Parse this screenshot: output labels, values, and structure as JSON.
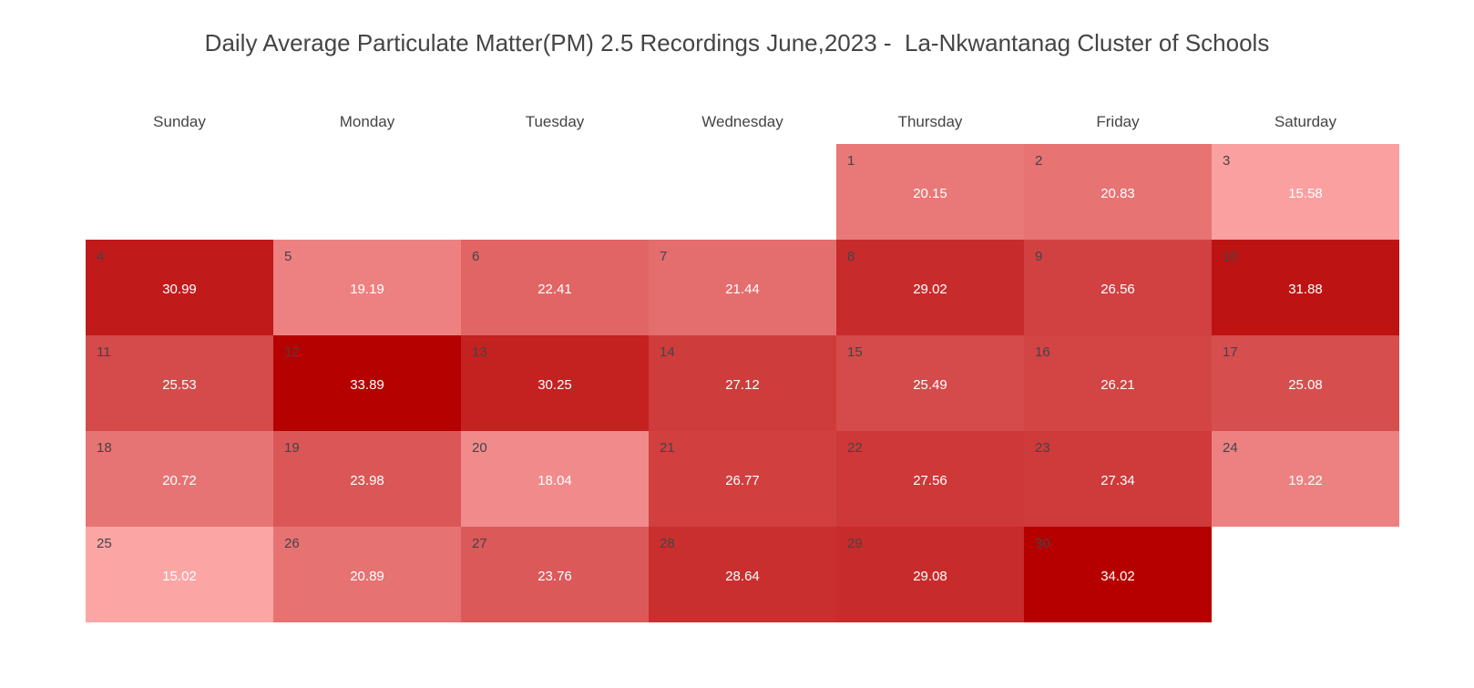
{
  "chart_data": {
    "type": "heatmap",
    "title": "Daily Average Particulate Matter(PM) 2.5 Recordings June,2023 -  La-Nkwantanag Cluster of Schools",
    "weekdays": [
      "Sunday",
      "Monday",
      "Tuesday",
      "Wednesday",
      "Thursday",
      "Friday",
      "Saturday"
    ],
    "first_weekday_index": 4,
    "days": [
      {
        "day": "1",
        "value": 20.15
      },
      {
        "day": "2",
        "value": 20.83
      },
      {
        "day": "3",
        "value": 15.58
      },
      {
        "day": "4",
        "value": 30.99
      },
      {
        "day": "5",
        "value": 19.19
      },
      {
        "day": "6",
        "value": 22.41
      },
      {
        "day": "7",
        "value": 21.44
      },
      {
        "day": "8",
        "value": 29.02
      },
      {
        "day": "9",
        "value": 26.56
      },
      {
        "day": "10",
        "value": 31.88
      },
      {
        "day": "11",
        "value": 25.53
      },
      {
        "day": "12",
        "value": 33.89
      },
      {
        "day": "13",
        "value": 30.25
      },
      {
        "day": "14",
        "value": 27.12
      },
      {
        "day": "15",
        "value": 25.49
      },
      {
        "day": "16",
        "value": 26.21
      },
      {
        "day": "17",
        "value": 25.08
      },
      {
        "day": "18",
        "value": 20.72
      },
      {
        "day": "19",
        "value": 23.98
      },
      {
        "day": "20",
        "value": 18.04
      },
      {
        "day": "21",
        "value": 26.77
      },
      {
        "day": "22",
        "value": 27.56
      },
      {
        "day": "23",
        "value": 27.34
      },
      {
        "day": "24",
        "value": 19.22
      },
      {
        "day": "25",
        "value": 15.02
      },
      {
        "day": "26",
        "value": 20.89
      },
      {
        "day": "27",
        "value": 23.76
      },
      {
        "day": "28",
        "value": 28.64
      },
      {
        "day": "29",
        "value": 29.08
      },
      {
        "day": "30",
        "value": 34.02
      }
    ],
    "color_low": "#fca5a5",
    "color_high": "#b60000"
  }
}
